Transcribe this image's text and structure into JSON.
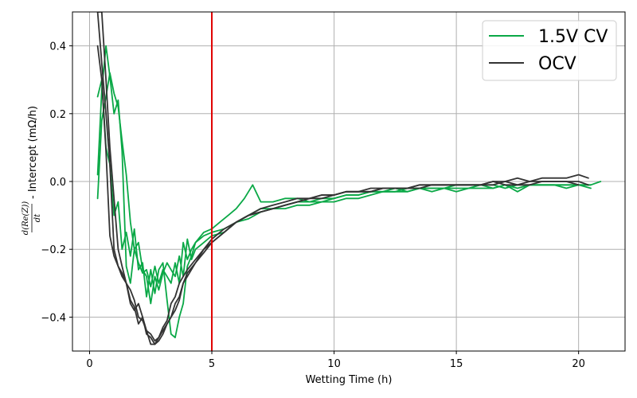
{
  "chart_data": {
    "type": "line",
    "title": "",
    "xlabel": "Wetting Time (h)",
    "ylabel_fraction_numerator": "d(Re(Z))",
    "ylabel_fraction_denominator": "dt",
    "ylabel_suffix": "- Intercept (mΩ/h)",
    "xlim": [
      -0.7,
      21.9
    ],
    "ylim": [
      -0.5,
      0.5
    ],
    "xticks": [
      0,
      5,
      10,
      15,
      20
    ],
    "yticks": [
      -0.4,
      -0.2,
      0.0,
      0.2,
      0.4
    ],
    "xtick_labels": [
      "0",
      "5",
      "10",
      "15",
      "20"
    ],
    "ytick_labels": [
      "−0.4",
      "−0.2",
      "0.0",
      "0.2",
      "0.4"
    ],
    "grid": true,
    "legend_position": "upper-right",
    "vline": {
      "x": 5.0,
      "color": "#e00000"
    },
    "legend": [
      {
        "label": "1.5V CV",
        "color": "#0aa846"
      },
      {
        "label": "OCV",
        "color": "#333333"
      }
    ],
    "series": [
      {
        "group": "1.5V CV",
        "color": "#0aa846",
        "x": [
          0.33,
          0.5,
          0.67,
          0.83,
          1.0,
          1.17,
          1.33,
          1.5,
          1.67,
          1.83,
          2.0,
          2.17,
          2.33,
          2.5,
          2.67,
          2.83,
          3.0,
          3.17,
          3.33,
          3.5,
          3.67,
          3.83,
          4.0,
          4.17,
          4.33,
          4.67,
          5.0,
          5.33,
          5.67,
          6.0,
          6.33,
          6.67,
          7.0,
          7.5,
          8.0,
          8.5,
          9.0,
          9.5,
          10.0,
          10.5,
          11.0,
          11.5,
          12.0,
          12.5,
          13.0,
          13.5,
          14.0,
          14.5,
          15.0,
          15.5,
          16.0,
          16.5,
          17.0,
          17.5,
          18.0,
          18.5,
          19.0,
          19.5,
          20.0,
          20.5
        ],
        "y": [
          0.02,
          0.27,
          0.4,
          0.31,
          0.2,
          0.24,
          0.09,
          -0.25,
          -0.3,
          -0.2,
          -0.24,
          -0.27,
          -0.26,
          -0.31,
          -0.25,
          -0.3,
          -0.26,
          -0.28,
          -0.3,
          -0.24,
          -0.3,
          -0.18,
          -0.23,
          -0.2,
          -0.18,
          -0.15,
          -0.14,
          -0.12,
          -0.1,
          -0.08,
          -0.05,
          -0.01,
          -0.06,
          -0.06,
          -0.05,
          -0.05,
          -0.06,
          -0.05,
          -0.05,
          -0.04,
          -0.04,
          -0.03,
          -0.03,
          -0.02,
          -0.03,
          -0.02,
          -0.02,
          -0.02,
          -0.02,
          -0.02,
          -0.01,
          -0.02,
          -0.01,
          -0.02,
          -0.01,
          -0.01,
          -0.01,
          -0.01,
          -0.01,
          -0.02
        ]
      },
      {
        "group": "1.5V CV",
        "color": "#0aa846",
        "x": [
          0.33,
          0.5,
          0.67,
          0.83,
          1.0,
          1.17,
          1.33,
          1.5,
          1.67,
          1.83,
          2.0,
          2.17,
          2.33,
          2.5,
          2.67,
          2.83,
          3.0,
          3.17,
          3.33,
          3.5,
          3.67,
          3.83,
          4.0,
          4.17,
          4.33,
          4.67,
          5.0,
          5.5,
          6.0,
          6.5,
          7.0,
          7.5,
          8.0,
          8.5,
          9.0,
          9.5,
          10.0,
          10.5,
          11.0,
          11.5,
          12.0,
          12.5,
          13.0,
          13.5,
          14.0,
          14.5,
          15.0,
          15.5,
          16.0,
          16.5,
          17.0,
          17.5,
          18.0,
          18.5,
          19.0,
          19.5,
          20.0,
          20.5,
          20.9
        ],
        "y": [
          -0.05,
          0.18,
          0.25,
          0.32,
          0.26,
          0.22,
          0.12,
          0.02,
          -0.12,
          -0.2,
          -0.18,
          -0.26,
          -0.28,
          -0.36,
          -0.28,
          -0.32,
          -0.27,
          -0.24,
          -0.26,
          -0.28,
          -0.22,
          -0.28,
          -0.17,
          -0.23,
          -0.2,
          -0.18,
          -0.16,
          -0.15,
          -0.12,
          -0.11,
          -0.09,
          -0.08,
          -0.08,
          -0.07,
          -0.07,
          -0.06,
          -0.06,
          -0.05,
          -0.05,
          -0.04,
          -0.03,
          -0.03,
          -0.03,
          -0.02,
          -0.03,
          -0.02,
          -0.03,
          -0.02,
          -0.02,
          -0.02,
          -0.01,
          -0.03,
          -0.01,
          -0.01,
          -0.01,
          -0.01,
          -0.01,
          -0.01,
          0.0
        ]
      },
      {
        "group": "1.5V CV",
        "color": "#0aa846",
        "x": [
          0.33,
          0.5,
          0.67,
          0.83,
          1.0,
          1.17,
          1.33,
          1.5,
          1.67,
          1.83,
          2.0,
          2.17,
          2.33,
          2.5,
          2.67,
          2.83,
          3.0,
          3.17,
          3.33,
          3.5,
          3.67,
          3.83,
          4.0,
          4.17,
          4.33,
          4.67,
          5.0,
          5.5,
          6.0,
          6.5,
          7.0,
          7.5,
          8.0,
          8.5,
          9.0,
          9.5,
          10.0,
          10.5,
          11.0,
          11.5,
          12.0,
          12.5,
          13.0,
          13.5,
          14.0,
          14.5,
          15.0,
          15.5,
          16.0,
          16.5,
          17.0,
          17.5,
          18.0,
          18.5,
          19.0,
          19.5,
          20.0,
          20.5
        ],
        "y": [
          0.25,
          0.3,
          0.1,
          0.05,
          -0.1,
          -0.06,
          -0.2,
          -0.15,
          -0.22,
          -0.14,
          -0.26,
          -0.24,
          -0.34,
          -0.26,
          -0.33,
          -0.26,
          -0.24,
          -0.35,
          -0.45,
          -0.46,
          -0.4,
          -0.36,
          -0.25,
          -0.22,
          -0.18,
          -0.16,
          -0.15,
          -0.14,
          -0.12,
          -0.1,
          -0.08,
          -0.08,
          -0.07,
          -0.06,
          -0.06,
          -0.06,
          -0.05,
          -0.04,
          -0.04,
          -0.03,
          -0.03,
          -0.03,
          -0.02,
          -0.02,
          -0.02,
          -0.02,
          -0.01,
          -0.01,
          -0.01,
          -0.01,
          -0.02,
          -0.01,
          -0.01,
          -0.01,
          -0.01,
          -0.02,
          -0.01,
          -0.01
        ]
      },
      {
        "group": "OCV",
        "color": "#333333",
        "x": [
          0.33,
          0.5,
          0.67,
          0.83,
          1.0,
          1.17,
          1.33,
          1.5,
          1.67,
          1.83,
          2.0,
          2.17,
          2.33,
          2.5,
          2.67,
          2.83,
          3.0,
          3.17,
          3.33,
          3.5,
          3.67,
          3.83,
          4.0,
          4.33,
          4.67,
          5.0,
          5.5,
          6.0,
          6.5,
          7.0,
          7.5,
          8.0,
          8.5,
          9.0,
          9.5,
          10.0,
          10.5,
          11.0,
          11.5,
          12.0,
          12.5,
          13.0,
          13.5,
          14.0,
          14.5,
          15.0,
          15.5,
          16.0,
          16.5,
          17.0,
          17.5,
          18.0,
          18.5,
          19.0,
          19.5,
          20.0,
          20.4
        ],
        "y": [
          0.5,
          0.35,
          0.2,
          0.05,
          -0.2,
          -0.25,
          -0.28,
          -0.3,
          -0.36,
          -0.38,
          -0.36,
          -0.4,
          -0.45,
          -0.46,
          -0.48,
          -0.47,
          -0.45,
          -0.42,
          -0.4,
          -0.38,
          -0.35,
          -0.3,
          -0.28,
          -0.24,
          -0.2,
          -0.17,
          -0.14,
          -0.12,
          -0.1,
          -0.08,
          -0.07,
          -0.06,
          -0.05,
          -0.05,
          -0.04,
          -0.04,
          -0.03,
          -0.03,
          -0.03,
          -0.02,
          -0.02,
          -0.02,
          -0.02,
          -0.01,
          -0.01,
          -0.01,
          -0.01,
          -0.01,
          0.0,
          0.0,
          0.01,
          0.0,
          0.01,
          0.01,
          0.01,
          0.02,
          0.01
        ]
      },
      {
        "group": "OCV",
        "color": "#333333",
        "x": [
          0.33,
          0.5,
          0.67,
          0.83,
          1.0,
          1.17,
          1.33,
          1.5,
          1.67,
          1.83,
          2.0,
          2.17,
          2.33,
          2.5,
          2.67,
          2.83,
          3.0,
          3.17,
          3.33,
          3.5,
          3.67,
          3.83,
          4.0,
          4.33,
          4.67,
          5.0,
          5.5,
          6.0,
          6.5,
          7.0,
          7.5,
          8.0,
          8.5,
          9.0,
          9.5,
          10.0,
          10.5,
          11.0,
          11.5,
          12.0,
          12.5,
          13.0,
          13.5,
          14.0,
          14.5,
          15.0,
          15.5,
          16.0,
          16.5,
          17.0,
          17.5,
          18.0,
          18.5,
          19.0,
          19.5,
          20.0,
          20.4
        ],
        "y": [
          0.4,
          0.3,
          0.09,
          -0.16,
          -0.22,
          -0.25,
          -0.27,
          -0.3,
          -0.35,
          -0.37,
          -0.42,
          -0.4,
          -0.44,
          -0.45,
          -0.47,
          -0.46,
          -0.43,
          -0.41,
          -0.36,
          -0.34,
          -0.3,
          -0.28,
          -0.26,
          -0.23,
          -0.2,
          -0.18,
          -0.15,
          -0.12,
          -0.1,
          -0.09,
          -0.08,
          -0.07,
          -0.06,
          -0.05,
          -0.04,
          -0.04,
          -0.03,
          -0.03,
          -0.02,
          -0.02,
          -0.02,
          -0.02,
          -0.01,
          -0.01,
          -0.01,
          -0.01,
          -0.01,
          -0.01,
          -0.01,
          0.0,
          -0.01,
          0.0,
          0.0,
          0.0,
          0.0,
          0.0,
          -0.01
        ]
      },
      {
        "group": "OCV",
        "color": "#333333",
        "x": [
          0.33,
          0.5,
          0.67,
          0.83,
          1.0,
          1.17,
          1.33,
          1.5,
          1.67,
          1.83,
          2.0,
          2.17,
          2.33,
          2.5,
          2.67,
          2.83,
          3.0,
          3.17,
          3.33,
          3.5,
          3.67,
          3.83,
          4.0,
          4.33,
          4.67,
          5.0,
          5.5,
          6.0,
          6.5,
          7.0,
          7.5,
          8.0,
          8.5,
          9.0,
          9.5,
          10.0,
          10.5,
          11.0,
          11.5,
          12.0,
          12.5,
          13.0,
          13.5,
          14.0,
          14.5,
          15.0,
          15.5,
          16.0,
          16.5,
          17.0,
          17.5,
          18.0,
          18.5,
          19.0,
          19.5,
          20.0
        ],
        "y": [
          0.5,
          0.5,
          0.3,
          0.1,
          -0.05,
          -0.2,
          -0.25,
          -0.3,
          -0.32,
          -0.35,
          -0.4,
          -0.41,
          -0.44,
          -0.48,
          -0.48,
          -0.46,
          -0.44,
          -0.42,
          -0.4,
          -0.36,
          -0.34,
          -0.3,
          -0.27,
          -0.24,
          -0.21,
          -0.18,
          -0.15,
          -0.12,
          -0.1,
          -0.09,
          -0.08,
          -0.07,
          -0.06,
          -0.05,
          -0.05,
          -0.04,
          -0.03,
          -0.03,
          -0.03,
          -0.02,
          -0.02,
          -0.02,
          -0.01,
          -0.01,
          -0.01,
          -0.01,
          -0.01,
          -0.01,
          0.0,
          -0.01,
          -0.01,
          -0.01,
          0.0,
          0.0,
          0.0,
          -0.01
        ]
      }
    ]
  }
}
